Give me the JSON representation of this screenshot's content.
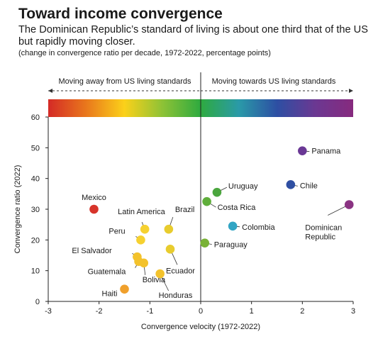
{
  "header": {
    "title": "Toward income convergence",
    "subtitle": "The Dominican Republic’s standard of living is about one third that of the US but rapidly moving closer.",
    "note": "(change in convergence ratio per decade, 1972-2022, percentage points)"
  },
  "chart_data": {
    "type": "scatter",
    "xlabel": "Convergence velocity (1972-2022)",
    "ylabel": "Convergence ratio (2022)",
    "xlim": [
      -3,
      3
    ],
    "ylim": [
      0,
      60
    ],
    "xticks": [
      "-3",
      "-2",
      "-1",
      "0",
      "1",
      "2",
      "3"
    ],
    "yticks": [
      "0",
      "10",
      "20",
      "30",
      "40",
      "50",
      "60"
    ],
    "grid": false,
    "direction_labels": {
      "left": "Moving away from US living standards",
      "right": "Moving towards US living standards"
    },
    "colorbar": [
      "#d42a26",
      "#e9781c",
      "#fbd11a",
      "#8dc236",
      "#2eaa3f",
      "#2a9aa8",
      "#2d4fa3",
      "#6b3892",
      "#872a7e"
    ],
    "points": [
      {
        "label": "Mexico",
        "x": -2.1,
        "y": 30,
        "color": "#d7342a"
      },
      {
        "label": "Latin America",
        "x": -1.1,
        "y": 23.5,
        "color": "#f6d130"
      },
      {
        "label": "Peru",
        "x": -1.18,
        "y": 20,
        "color": "#f6d130"
      },
      {
        "label": "Brazil",
        "x": -0.63,
        "y": 23.5,
        "color": "#e8cc2e"
      },
      {
        "label": "El Salvador",
        "x": -1.25,
        "y": 14.5,
        "color": "#f3c22c"
      },
      {
        "label": "Guatemala",
        "x": -1.22,
        "y": 13,
        "color": "#f3c22c"
      },
      {
        "label": "Bolivia",
        "x": -1.12,
        "y": 12.5,
        "color": "#f3c22c"
      },
      {
        "label": "Ecuador",
        "x": -0.6,
        "y": 17,
        "color": "#e8cc2e"
      },
      {
        "label": "Honduras",
        "x": -0.8,
        "y": 9,
        "color": "#f3c22c"
      },
      {
        "label": "Haiti",
        "x": -1.5,
        "y": 4,
        "color": "#f0a02c"
      },
      {
        "label": "Uruguay",
        "x": 0.32,
        "y": 35.5,
        "color": "#4ba63e"
      },
      {
        "label": "Costa Rica",
        "x": 0.12,
        "y": 32.5,
        "color": "#5fae3b"
      },
      {
        "label": "Paraguay",
        "x": 0.08,
        "y": 19,
        "color": "#79b236"
      },
      {
        "label": "Colombia",
        "x": 0.63,
        "y": 24.5,
        "color": "#32a5c4"
      },
      {
        "label": "Chile",
        "x": 1.77,
        "y": 38,
        "color": "#2f4fa2"
      },
      {
        "label": "Panama",
        "x": 2.0,
        "y": 49,
        "color": "#6a3895"
      },
      {
        "label": "Dominican Republic",
        "x": 2.92,
        "y": 31.5,
        "color": "#8a3382"
      }
    ]
  }
}
